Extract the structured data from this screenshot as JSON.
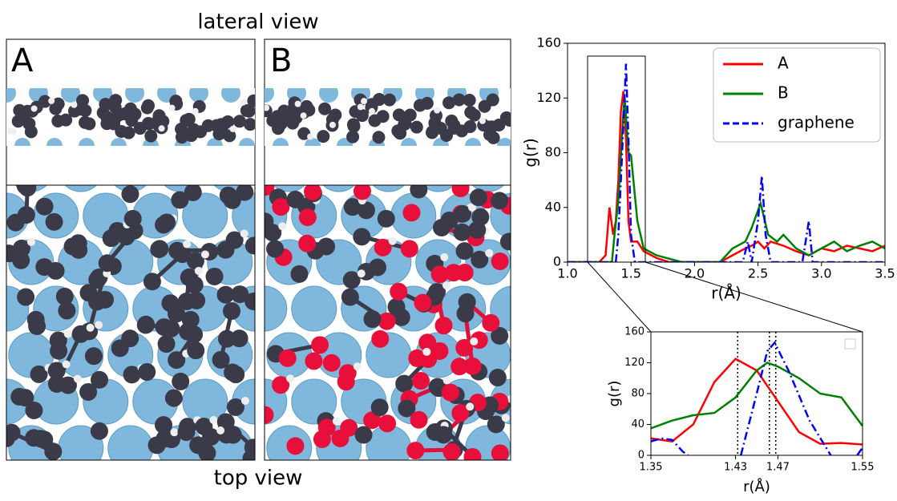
{
  "figure": {
    "top_caption": "lateral view",
    "bottom_caption": "top view",
    "panels": [
      "A",
      "B"
    ]
  },
  "chart_data": [
    {
      "type": "line",
      "xlabel": "r(Å)",
      "ylabel": "g(r)",
      "xlim": [
        1.0,
        3.5
      ],
      "ylim": [
        0,
        160
      ],
      "xticks": [
        {
          "value": 1.0,
          "label": "1.0"
        },
        1.5,
        {
          "value": 2.0,
          "label": "2.0"
        },
        2.5,
        {
          "value": 3.0,
          "label": "3.0"
        },
        3.5
      ],
      "yticks": [
        0,
        40,
        80,
        120,
        160
      ],
      "legend": "upper right",
      "series": [
        {
          "name": "A",
          "color": "#ff0000",
          "linestyle": "solid",
          "x": [
            1.0,
            1.25,
            1.3,
            1.33,
            1.36,
            1.38,
            1.4,
            1.42,
            1.44,
            1.46,
            1.48,
            1.5,
            1.55,
            1.6,
            1.7,
            1.8,
            2.0,
            2.2,
            2.3,
            2.4,
            2.45,
            2.5,
            2.55,
            2.6,
            2.7,
            2.8,
            2.9,
            3.0,
            3.1,
            3.2,
            3.3,
            3.4,
            3.5
          ],
          "values": [
            0,
            0,
            5,
            40,
            20,
            30,
            60,
            110,
            125,
            90,
            30,
            15,
            15,
            8,
            3,
            0,
            0,
            0,
            5,
            10,
            12,
            15,
            10,
            15,
            12,
            8,
            5,
            10,
            8,
            12,
            10,
            8,
            12
          ]
        },
        {
          "name": "B",
          "color": "#008000",
          "linestyle": "solid",
          "x": [
            1.0,
            1.35,
            1.37,
            1.4,
            1.44,
            1.45,
            1.48,
            1.5,
            1.55,
            1.6,
            1.7,
            1.9,
            2.2,
            2.3,
            2.4,
            2.45,
            2.52,
            2.58,
            2.65,
            2.7,
            2.8,
            2.9,
            3.0,
            3.1,
            3.2,
            3.3,
            3.4,
            3.5
          ],
          "values": [
            0,
            0,
            20,
            45,
            110,
            120,
            80,
            78,
            30,
            10,
            5,
            0,
            0,
            10,
            15,
            25,
            43,
            20,
            15,
            20,
            10,
            5,
            10,
            15,
            8,
            12,
            15,
            10
          ]
        },
        {
          "name": "graphene",
          "color": "#0000ff",
          "linestyle": "dashdot",
          "x": [
            1.0,
            1.38,
            1.4,
            1.44,
            1.46,
            1.48,
            1.5,
            1.53,
            2.38,
            2.42,
            2.45,
            2.5,
            2.53,
            2.56,
            2.6,
            2.85,
            2.9,
            2.93,
            3.5
          ],
          "values": [
            0,
            0,
            20,
            100,
            145,
            90,
            20,
            0,
            0,
            15,
            0,
            30,
            63,
            20,
            0,
            0,
            30,
            0,
            0
          ]
        }
      ]
    },
    {
      "type": "line",
      "xlabel": "r(Å)",
      "ylabel": "g(r)",
      "xlim": [
        1.35,
        1.55
      ],
      "ylim": [
        0,
        160
      ],
      "xticks": [
        1.35,
        1.43,
        1.47,
        1.55
      ],
      "yticks": [
        0,
        40,
        80,
        120,
        160
      ],
      "vlines": [
        1.432,
        1.462,
        1.468
      ],
      "series": [
        {
          "name": "A",
          "color": "#ff0000",
          "linestyle": "solid",
          "x": [
            1.35,
            1.37,
            1.39,
            1.41,
            1.43,
            1.45,
            1.47,
            1.49,
            1.51,
            1.53,
            1.55
          ],
          "values": [
            22,
            18,
            40,
            95,
            125,
            110,
            70,
            30,
            15,
            16,
            14
          ]
        },
        {
          "name": "B",
          "color": "#008000",
          "linestyle": "solid",
          "x": [
            1.35,
            1.37,
            1.39,
            1.41,
            1.43,
            1.45,
            1.46,
            1.47,
            1.49,
            1.51,
            1.53,
            1.55
          ],
          "values": [
            35,
            45,
            52,
            55,
            75,
            110,
            120,
            115,
            100,
            80,
            75,
            38
          ]
        },
        {
          "name": "graphene",
          "color": "#0000ff",
          "linestyle": "dashdot",
          "x": [
            1.35,
            1.36,
            1.37,
            1.38,
            1.385,
            1.41,
            1.435,
            1.45,
            1.46,
            1.467,
            1.48,
            1.5,
            1.52,
            1.535,
            1.545,
            1.55
          ],
          "values": [
            18,
            22,
            20,
            5,
            0,
            null,
            0,
            80,
            135,
            146,
            110,
            45,
            0,
            null,
            0,
            10
          ]
        }
      ]
    }
  ]
}
